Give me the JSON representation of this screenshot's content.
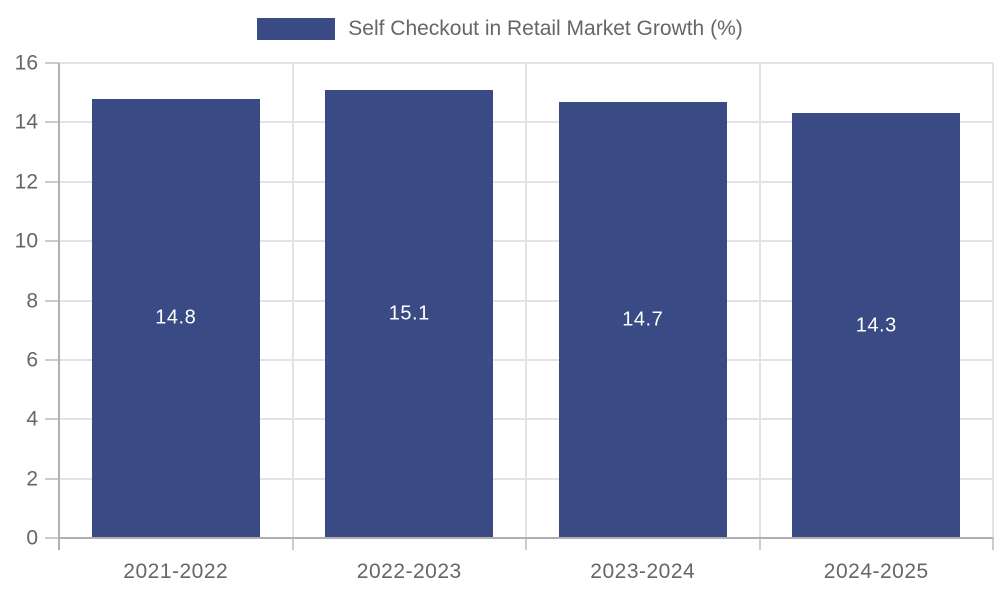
{
  "legend": {
    "label": "Self Checkout in Retail Market Growth (%)"
  },
  "chart_data": {
    "type": "bar",
    "title": "Self Checkout in Retail Market Growth (%)",
    "legend_position": "top",
    "categories": [
      "2021-2022",
      "2022-2023",
      "2023-2024",
      "2024-2025"
    ],
    "series": [
      {
        "name": "Self Checkout in Retail Market Growth (%)",
        "values": [
          14.8,
          15.1,
          14.7,
          14.3
        ]
      }
    ],
    "values": [
      14.8,
      15.1,
      14.7,
      14.3
    ],
    "bar_value_labels": [
      "14.8",
      "15.1",
      "14.7",
      "14.3"
    ],
    "xlabel": "",
    "ylabel": "",
    "ylim": [
      0,
      16
    ],
    "y_ticks": [
      "0",
      "2",
      "4",
      "6",
      "8",
      "10",
      "12",
      "14",
      "16"
    ],
    "grid": true,
    "colors": {
      "bar": "#394a85",
      "grid": "#e3e3e3",
      "axis": "#b0b0b0",
      "tick_mark": "#cccccc",
      "tick_label_text": "#666666",
      "legend_text": "#666666",
      "bar_label_text": "#ffffff",
      "background": "#ffffff"
    }
  }
}
